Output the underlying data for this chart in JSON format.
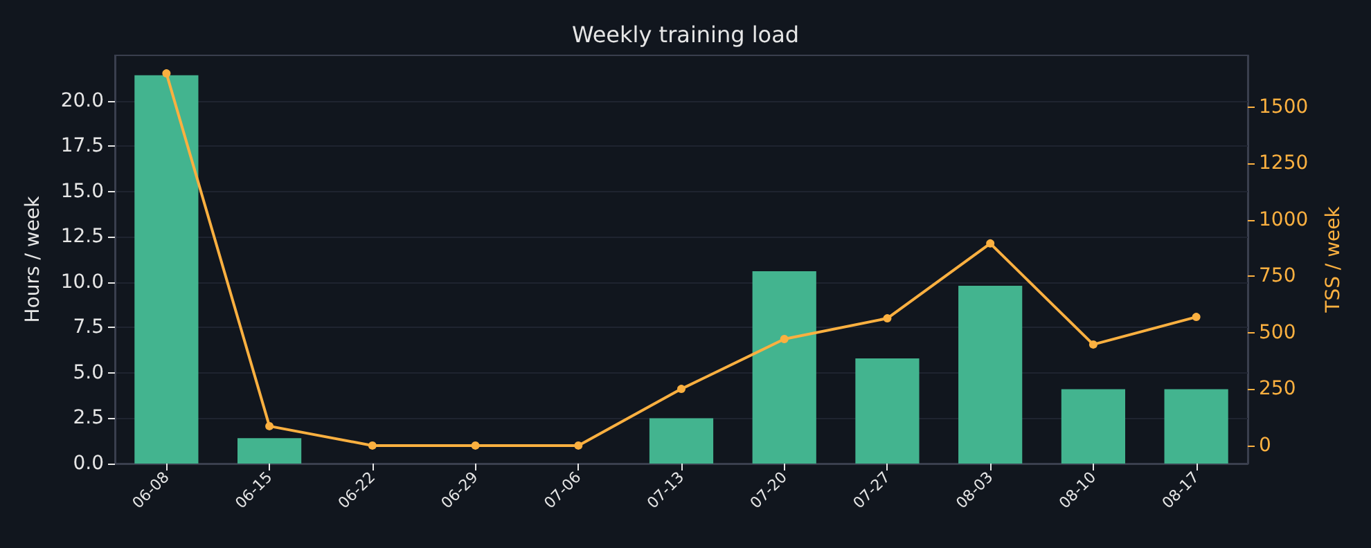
{
  "chart_data": {
    "type": "bar",
    "title": "Weekly training load",
    "ylabel": "Hours / week",
    "y2label": "TSS / week",
    "categories": [
      "06-08",
      "06-15",
      "06-22",
      "06-29",
      "07-06",
      "07-13",
      "07-20",
      "07-27",
      "08-03",
      "08-10",
      "08-17"
    ],
    "series": [
      {
        "color": "#43b48f",
        "values": [
          21.4,
          1.4,
          0,
          0,
          0,
          2.5,
          10.6,
          5.8,
          9.8,
          4.1,
          4.1
        ]
      },
      {
        "type": "line",
        "axis": "y2",
        "color": "#fbb040",
        "marker": "circle",
        "values": [
          1650,
          86,
          0,
          0,
          0,
          251,
          472,
          564,
          896,
          448,
          570
        ]
      }
    ],
    "ylim": [
      0,
      22.5
    ],
    "yticks": [
      {
        "value": 0,
        "label": "0.0"
      },
      2.5,
      {
        "value": 5,
        "label": "5.0"
      },
      7.5,
      {
        "value": 10,
        "label": "10.0"
      },
      12.5,
      {
        "value": 15,
        "label": "15.0"
      },
      17.5,
      {
        "value": 20,
        "label": "20.0"
      }
    ],
    "y2lim": [
      -80,
      1730
    ],
    "y2ticks": [
      0,
      250,
      500,
      750,
      1000,
      1250,
      1500
    ],
    "grid": "y"
  }
}
